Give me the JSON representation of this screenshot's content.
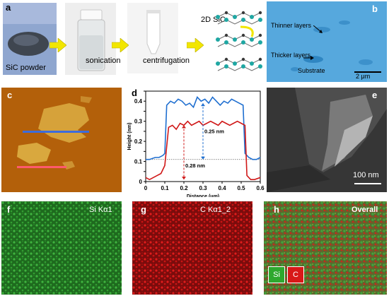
{
  "panels": {
    "a": {
      "letter": "a",
      "sic_powder": "SiC powder",
      "sonication": "sonication",
      "centrifugation": "centrifugation",
      "sic_2d": "2D SiC"
    },
    "b": {
      "letter": "b",
      "thinner": "Thinner layers",
      "thicker": "Thicker layers",
      "substrate": "Substrate",
      "scale": "2 μm"
    },
    "c": {
      "letter": "c"
    },
    "d": {
      "letter": "d",
      "annot_blue": "0.25 nm",
      "annot_red": "0.28 nm"
    },
    "e": {
      "letter": "e",
      "scale": "100 nm"
    },
    "f": {
      "letter": "f",
      "label": "Si Kα1"
    },
    "g": {
      "letter": "g",
      "label": "C Kα1_2"
    },
    "h": {
      "letter": "h",
      "label": "Overall",
      "legend_si": "Si",
      "legend_c": "C"
    }
  },
  "colors": {
    "arrow": "#f2e600",
    "afm_bg": "#b8660c",
    "blue_line": "#1f6fd0",
    "red_line": "#d01818",
    "eds_si": "#2ea82e",
    "eds_c": "#d81818",
    "sem_bg": "#3a3a3a"
  },
  "chart_data": {
    "type": "line",
    "title": "",
    "xlabel": "Distance (μm)",
    "ylabel": "Height (nm)",
    "xlim": [
      0,
      0.6
    ],
    "ylim": [
      0,
      0.45
    ],
    "xticks": [
      "0",
      "0.1",
      "0.2",
      "0.3",
      "0.4",
      "0.5",
      "0.6"
    ],
    "yticks": [
      "0",
      "0.05",
      "0.1",
      "0.15",
      "0.2",
      "0.25",
      "0.3",
      "0.35",
      "0.4",
      "0.45"
    ],
    "series": [
      {
        "color": "#1f6fd0",
        "x": [
          0.0,
          0.02,
          0.05,
          0.07,
          0.09,
          0.1,
          0.11,
          0.13,
          0.15,
          0.17,
          0.19,
          0.21,
          0.23,
          0.25,
          0.27,
          0.29,
          0.31,
          0.33,
          0.35,
          0.37,
          0.39,
          0.41,
          0.43,
          0.45,
          0.47,
          0.49,
          0.51,
          0.52,
          0.54,
          0.56,
          0.58,
          0.6
        ],
        "y": [
          0.11,
          0.11,
          0.12,
          0.12,
          0.13,
          0.14,
          0.38,
          0.4,
          0.39,
          0.41,
          0.4,
          0.38,
          0.39,
          0.37,
          0.42,
          0.4,
          0.41,
          0.39,
          0.42,
          0.4,
          0.38,
          0.4,
          0.39,
          0.41,
          0.4,
          0.39,
          0.38,
          0.14,
          0.12,
          0.11,
          0.11,
          0.12
        ]
      },
      {
        "color": "#d01818",
        "x": [
          0.0,
          0.02,
          0.04,
          0.06,
          0.08,
          0.1,
          0.12,
          0.14,
          0.16,
          0.18,
          0.2,
          0.22,
          0.24,
          0.26,
          0.28,
          0.3,
          0.32,
          0.34,
          0.36,
          0.38,
          0.4,
          0.42,
          0.44,
          0.46,
          0.48,
          0.5,
          0.52,
          0.53,
          0.55,
          0.57,
          0.6
        ],
        "y": [
          0.02,
          0.01,
          0.02,
          0.03,
          0.04,
          0.08,
          0.27,
          0.28,
          0.26,
          0.29,
          0.28,
          0.3,
          0.28,
          0.29,
          0.3,
          0.28,
          0.29,
          0.3,
          0.29,
          0.28,
          0.3,
          0.29,
          0.28,
          0.29,
          0.3,
          0.29,
          0.28,
          0.03,
          0.01,
          0.01,
          0.02
        ]
      }
    ],
    "reference_line": {
      "y": 0.11,
      "style": "dotted"
    }
  }
}
